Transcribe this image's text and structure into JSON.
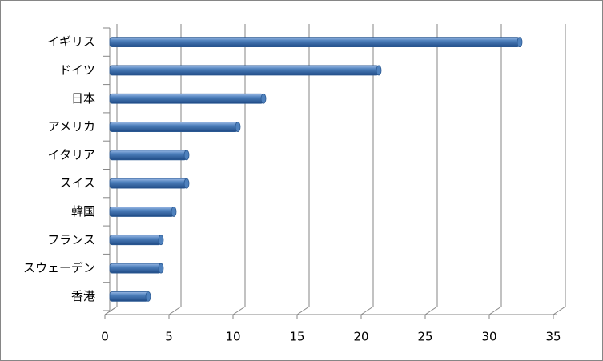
{
  "chart_data": {
    "type": "hbar",
    "categories": [
      "イギリス",
      "ドイツ",
      "日本",
      "アメリカ",
      "イタリア",
      "スイス",
      "韓国",
      "フランス",
      "スウェーデン",
      "香港"
    ],
    "values": [
      32,
      21,
      12,
      10,
      6,
      6,
      5,
      4,
      4,
      3
    ],
    "color": "#4f81bd",
    "xlim": [
      0,
      35
    ],
    "xticks": [
      0,
      5,
      10,
      15,
      20,
      25,
      30,
      35
    ],
    "grid": true
  }
}
